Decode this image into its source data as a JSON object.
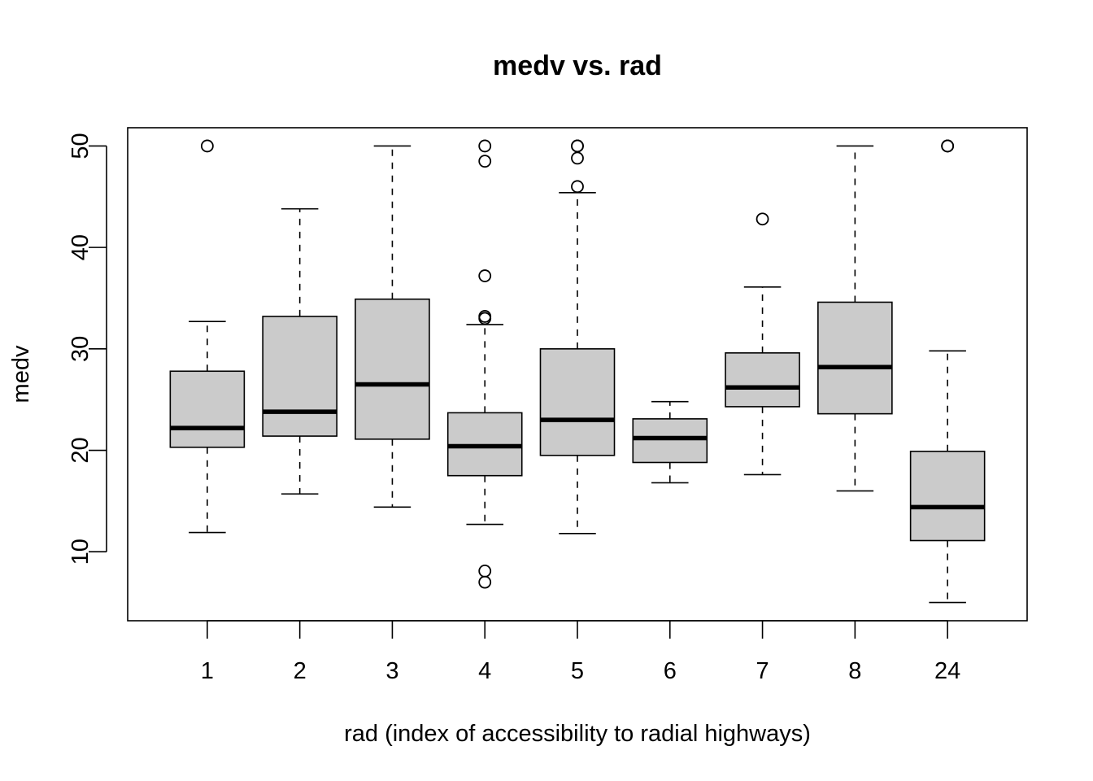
{
  "chart_data": {
    "type": "boxplot",
    "title": "medv vs. rad",
    "xlabel": "rad (index of accessibility to radial highways)",
    "ylabel": "medv",
    "ylim": [
      3.2,
      51.8
    ],
    "yticks": [
      10,
      20,
      30,
      40,
      50
    ],
    "ytick_labels": [
      "10",
      "20",
      "30",
      "40",
      "50"
    ],
    "categories": [
      "1",
      "2",
      "3",
      "4",
      "5",
      "6",
      "7",
      "8",
      "24"
    ],
    "boxes": [
      {
        "category": "1",
        "whisker_low": 11.9,
        "q1": 20.3,
        "median": 22.2,
        "q3": 27.8,
        "whisker_high": 32.7,
        "outliers": [
          50.0
        ]
      },
      {
        "category": "2",
        "whisker_low": 15.7,
        "q1": 21.4,
        "median": 23.8,
        "q3": 33.2,
        "whisker_high": 43.8,
        "outliers": []
      },
      {
        "category": "3",
        "whisker_low": 14.4,
        "q1": 21.1,
        "median": 26.5,
        "q3": 34.9,
        "whisker_high": 50.0,
        "outliers": []
      },
      {
        "category": "4",
        "whisker_low": 12.7,
        "q1": 17.5,
        "median": 20.4,
        "q3": 23.7,
        "whisker_high": 32.4,
        "outliers": [
          7.0,
          8.1,
          33.0,
          33.2,
          37.2,
          48.5,
          50.0
        ]
      },
      {
        "category": "5",
        "whisker_low": 11.8,
        "q1": 19.5,
        "median": 23.0,
        "q3": 30.0,
        "whisker_high": 45.4,
        "outliers": [
          46.0,
          48.8,
          50.0,
          50.0
        ]
      },
      {
        "category": "6",
        "whisker_low": 16.8,
        "q1": 18.8,
        "median": 21.2,
        "q3": 23.1,
        "whisker_high": 24.8,
        "outliers": []
      },
      {
        "category": "7",
        "whisker_low": 17.6,
        "q1": 24.3,
        "median": 26.2,
        "q3": 29.6,
        "whisker_high": 36.1,
        "outliers": [
          42.8
        ]
      },
      {
        "category": "8",
        "whisker_low": 16.0,
        "q1": 23.6,
        "median": 28.2,
        "q3": 34.6,
        "whisker_high": 50.0,
        "outliers": []
      },
      {
        "category": "24",
        "whisker_low": 5.0,
        "q1": 11.1,
        "median": 14.4,
        "q3": 19.9,
        "whisker_high": 29.8,
        "outliers": [
          50.0,
          50.0
        ]
      }
    ]
  }
}
